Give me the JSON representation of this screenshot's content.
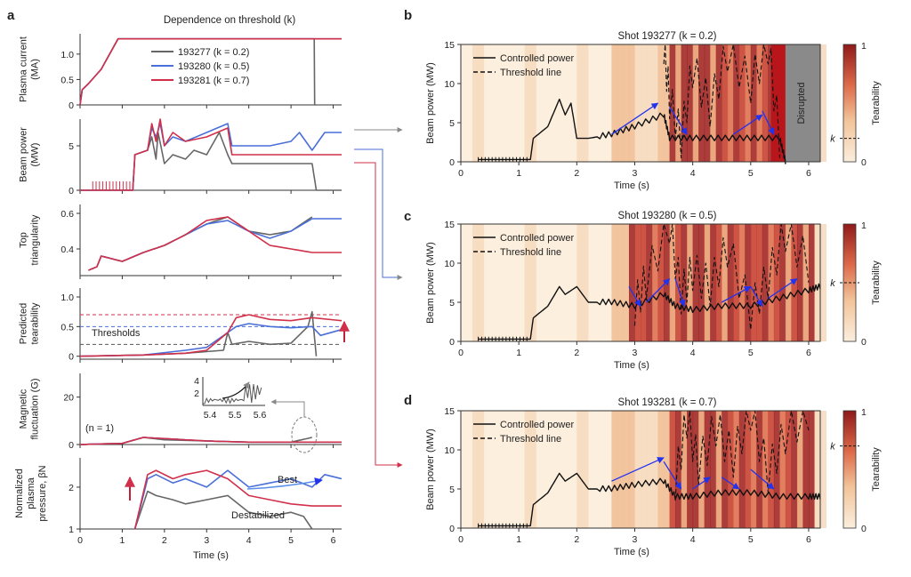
{
  "panels": {
    "a": "a",
    "b": "b",
    "c": "c",
    "d": "d"
  },
  "colors": {
    "gray": "#666666",
    "blue": "#4a6fd8",
    "red": "#d0304a",
    "black": "#111111",
    "arrow_blue": "#2233ee",
    "disrupted": "#8a8a8a",
    "connector": "#d0304a"
  },
  "panel_a": {
    "title": "Dependence on threshold (k)",
    "xlabel": "Time (s)",
    "xticks": [
      "0",
      "1",
      "2",
      "3",
      "4",
      "5",
      "6"
    ],
    "legend": [
      "193277 (k = 0.2)",
      "193280 (k = 0.5)",
      "193281 (k = 0.7)"
    ],
    "annotations": {
      "thresholds": "Thresholds",
      "n1": "(n = 1)",
      "best": "Best",
      "destabilized": "Destabilized"
    },
    "inset_yticks": [
      "2",
      "4"
    ],
    "inset_xticks": [
      "5.4",
      "5.5",
      "5.6"
    ],
    "subplots": [
      {
        "ylabel": [
          "Plasma current",
          "(MA)"
        ],
        "yticks": [
          "0",
          "0.5",
          "1.0"
        ]
      },
      {
        "ylabel": [
          "Beam power",
          "(MW)"
        ],
        "yticks": [
          "0",
          "5"
        ]
      },
      {
        "ylabel": [
          "Top",
          "triangularity"
        ],
        "yticks": [
          "0.4",
          "0.6"
        ]
      },
      {
        "ylabel": [
          "Predicted",
          "tearability"
        ],
        "yticks": [
          "0",
          "0.5",
          "1.0"
        ]
      },
      {
        "ylabel": [
          "Magnetic",
          "fluctuation (G)"
        ],
        "yticks": [
          "0",
          "20"
        ]
      },
      {
        "ylabel": [
          "Normalized",
          "plasma",
          "pressure, βN"
        ],
        "yticks": [
          "1",
          "2"
        ]
      }
    ]
  },
  "right_panels": {
    "ylabel": "Beam power (MW)",
    "xlabel": "Time (s)",
    "xticks": [
      "0",
      "1",
      "2",
      "3",
      "4",
      "5",
      "6"
    ],
    "yticks": [
      "0",
      "5",
      "10",
      "15"
    ],
    "legend_solid": "Controlled power",
    "legend_dashed": "Threshold line",
    "colorbar_label": "Tearability",
    "colorbar_ticks": [
      "0",
      "1"
    ],
    "k_label": "k",
    "disrupted": "Disrupted",
    "titles": [
      "Shot 193277 (k = 0.2)",
      "Shot 193280 (k = 0.5)",
      "Shot 193281 (k = 0.7)"
    ]
  },
  "chart_data": [
    {
      "type": "line",
      "title": "Plasma current (MA)",
      "xlabel": "Time (s)",
      "ylabel": "Plasma current (MA)",
      "xlim": [
        0,
        6.2
      ],
      "ylim": [
        0,
        1.4
      ],
      "series": [
        {
          "name": "193277 (k = 0.2)",
          "x": [
            0,
            0.05,
            0.2,
            0.5,
            0.9,
            0.95,
            5.55,
            5.56,
            5.6
          ],
          "y": [
            0,
            0.3,
            0.42,
            0.7,
            1.3,
            1.3,
            1.3,
            0,
            0
          ]
        },
        {
          "name": "193280 (k = 0.5)",
          "x": [
            0,
            0.05,
            0.2,
            0.5,
            0.9,
            0.95,
            6.2
          ],
          "y": [
            0,
            0.3,
            0.42,
            0.7,
            1.3,
            1.3,
            1.3
          ]
        },
        {
          "name": "193281 (k = 0.7)",
          "x": [
            0,
            0.05,
            0.2,
            0.5,
            0.9,
            0.95,
            6.2
          ],
          "y": [
            0,
            0.3,
            0.42,
            0.7,
            1.3,
            1.3,
            1.3
          ]
        }
      ]
    },
    {
      "type": "line",
      "title": "Beam power (MW)",
      "xlabel": "Time (s)",
      "ylabel": "Beam power (MW)",
      "xlim": [
        0,
        6.2
      ],
      "ylim": [
        0,
        8
      ],
      "series": [
        {
          "name": "193277 (k = 0.2)",
          "x": [
            0,
            0.3,
            1.0,
            1.25,
            1.3,
            1.6,
            1.7,
            1.8,
            1.85,
            2.0,
            2.2,
            2.5,
            2.7,
            3.0,
            3.3,
            3.5,
            3.6,
            4.0,
            4.5,
            5.0,
            5.5,
            5.6,
            6.2
          ],
          "y": [
            0,
            0,
            0,
            0,
            4,
            4.5,
            6,
            3.5,
            6.5,
            3,
            4,
            3.5,
            4.5,
            4,
            6.5,
            4,
            3,
            3,
            3,
            3,
            3,
            0,
            0
          ]
        },
        {
          "name": "193280 (k = 0.5)",
          "x": [
            0,
            1.25,
            1.3,
            1.6,
            1.7,
            1.8,
            1.9,
            2.0,
            2.2,
            2.5,
            3.0,
            3.5,
            3.6,
            4.0,
            4.5,
            5.0,
            5.2,
            5.5,
            5.8,
            6.2
          ],
          "y": [
            0,
            0,
            4,
            4.5,
            7,
            6,
            7.5,
            5,
            6,
            5.5,
            6.5,
            7.5,
            5,
            5,
            5,
            5.5,
            6.5,
            4.5,
            6.5,
            6.5
          ]
        },
        {
          "name": "193281 (k = 0.7)",
          "x": [
            0,
            1.25,
            1.3,
            1.6,
            1.7,
            1.8,
            1.9,
            2.0,
            2.2,
            2.5,
            3.0,
            3.5,
            3.6,
            4.0,
            4.5,
            5.0,
            5.5,
            6.2
          ],
          "y": [
            0,
            0,
            4,
            4.5,
            7.5,
            5.5,
            8,
            5,
            6.5,
            5.5,
            6,
            7,
            4,
            4,
            4,
            4,
            4,
            4
          ]
        }
      ]
    },
    {
      "type": "line",
      "title": "Top triangularity",
      "xlabel": "Time (s)",
      "ylabel": "Top triangularity",
      "xlim": [
        0,
        6.2
      ],
      "ylim": [
        0.25,
        0.65
      ],
      "series": [
        {
          "name": "193277 (k = 0.2)",
          "x": [
            0.2,
            0.4,
            0.5,
            1.0,
            1.5,
            2.0,
            2.5,
            3.0,
            3.5,
            4.0,
            4.5,
            5.0,
            5.5
          ],
          "y": [
            0.28,
            0.3,
            0.36,
            0.33,
            0.38,
            0.42,
            0.48,
            0.54,
            0.58,
            0.5,
            0.48,
            0.5,
            0.58
          ]
        },
        {
          "name": "193280 (k = 0.5)",
          "x": [
            0.2,
            0.4,
            0.5,
            1.0,
            1.5,
            2.0,
            2.5,
            3.0,
            3.5,
            4.0,
            4.5,
            5.0,
            5.5,
            6.2
          ],
          "y": [
            0.28,
            0.3,
            0.36,
            0.33,
            0.38,
            0.42,
            0.48,
            0.54,
            0.56,
            0.5,
            0.46,
            0.5,
            0.57,
            0.57
          ]
        },
        {
          "name": "193281 (k = 0.7)",
          "x": [
            0.2,
            0.4,
            0.5,
            1.0,
            1.5,
            2.0,
            2.5,
            3.0,
            3.5,
            4.0,
            4.5,
            5.0,
            5.5,
            6.2
          ],
          "y": [
            0.28,
            0.3,
            0.36,
            0.33,
            0.38,
            0.42,
            0.48,
            0.56,
            0.58,
            0.5,
            0.42,
            0.4,
            0.38,
            0.38
          ]
        }
      ]
    },
    {
      "type": "line",
      "title": "Predicted tearability",
      "xlabel": "Time (s)",
      "ylabel": "Predicted tearability",
      "xlim": [
        0,
        6.2
      ],
      "ylim": [
        -0.05,
        1.15
      ],
      "series": [
        {
          "name": "193277 (k = 0.2)",
          "x": [
            0,
            1.5,
            2.5,
            3.4,
            3.5,
            3.6,
            4.0,
            4.5,
            5.0,
            5.4,
            5.5,
            5.6
          ],
          "y": [
            0,
            0.02,
            0.05,
            0.1,
            0.4,
            0.2,
            0.25,
            0.2,
            0.22,
            0.5,
            0.75,
            0
          ]
        },
        {
          "name": "193280 (k = 0.5)",
          "x": [
            0,
            1.5,
            2.5,
            3.0,
            3.5,
            3.7,
            4.0,
            4.5,
            5.0,
            5.5,
            5.7,
            6.2
          ],
          "y": [
            0,
            0.02,
            0.1,
            0.15,
            0.4,
            0.5,
            0.55,
            0.5,
            0.48,
            0.5,
            0.35,
            0.45
          ]
        },
        {
          "name": "193281 (k = 0.7)",
          "x": [
            0,
            1.5,
            2.5,
            3.0,
            3.5,
            3.7,
            4.0,
            4.5,
            5.0,
            5.5,
            6.2
          ],
          "y": [
            0,
            0.02,
            0.05,
            0.1,
            0.4,
            0.65,
            0.7,
            0.62,
            0.6,
            0.65,
            0.6
          ]
        }
      ]
    },
    {
      "type": "line",
      "title": "Magnetic fluctuation (G)",
      "xlabel": "Time (s)",
      "ylabel": "Magnetic fluctuation (G)",
      "xlim": [
        0,
        6.2
      ],
      "ylim": [
        0,
        30
      ],
      "series": [
        {
          "name": "193277 (k = 0.2)",
          "x": [
            0,
            1.0,
            1.5,
            2.0,
            3.0,
            4.0,
            5.0,
            5.5
          ],
          "y": [
            0,
            0.5,
            3,
            2,
            1.5,
            1,
            1,
            3
          ]
        },
        {
          "name": "193280 (k = 0.5)",
          "x": [
            0,
            1.0,
            1.5,
            2.0,
            3.0,
            4.0,
            5.0,
            6.2
          ],
          "y": [
            0,
            0.5,
            3,
            2.5,
            1.5,
            1,
            1,
            1
          ]
        },
        {
          "name": "193281 (k = 0.7)",
          "x": [
            0,
            1.0,
            1.5,
            2.0,
            3.0,
            4.0,
            5.0,
            6.2
          ],
          "y": [
            0,
            0.5,
            3,
            2.5,
            1.5,
            1,
            1,
            1
          ]
        }
      ]
    },
    {
      "type": "line",
      "title": "Normalized plasma pressure",
      "xlabel": "Time (s)",
      "ylabel": "βN",
      "xlim": [
        0,
        6.2
      ],
      "ylim": [
        1,
        2.7
      ],
      "series": [
        {
          "name": "193277 (k = 0.2)",
          "x": [
            1.3,
            1.6,
            1.8,
            2.2,
            2.5,
            3.0,
            3.5,
            4.0,
            4.5,
            5.0,
            5.3,
            5.5
          ],
          "y": [
            1.0,
            1.9,
            1.8,
            1.7,
            1.6,
            1.7,
            1.8,
            1.4,
            1.3,
            1.4,
            1.3,
            1.0
          ]
        },
        {
          "name": "193280 (k = 0.5)",
          "x": [
            1.3,
            1.6,
            1.8,
            2.2,
            2.5,
            3.0,
            3.5,
            4.0,
            4.5,
            5.0,
            5.5,
            5.8,
            6.2
          ],
          "y": [
            1.0,
            2.2,
            2.3,
            2.1,
            2.2,
            2.0,
            2.4,
            2.0,
            2.1,
            2.2,
            2.0,
            2.3,
            2.2
          ]
        },
        {
          "name": "193281 (k = 0.7)",
          "x": [
            1.3,
            1.6,
            1.8,
            2.2,
            2.5,
            3.0,
            3.5,
            4.0,
            4.5,
            5.0,
            5.5,
            6.2
          ],
          "y": [
            1.0,
            2.3,
            2.4,
            2.2,
            2.3,
            2.4,
            2.2,
            1.8,
            1.7,
            1.6,
            1.55,
            1.55
          ]
        }
      ]
    },
    {
      "type": "heatmap",
      "title": "Shot 193277 (k = 0.2)",
      "xlabel": "Time (s)",
      "ylabel": "Beam power (MW)",
      "xlim": [
        0,
        6.2
      ],
      "ylim": [
        0,
        15
      ],
      "disrupted_from": 5.6,
      "series": [
        {
          "name": "Controlled power",
          "x": [
            0.3,
            1.2,
            1.25,
            1.5,
            1.7,
            1.8,
            1.9,
            2.0,
            2.2,
            2.6,
            3.0,
            3.5,
            3.6,
            4.0,
            4.5,
            5.0,
            5.5,
            5.6
          ],
          "y": [
            0.3,
            0.3,
            3,
            4.5,
            8,
            6,
            7.5,
            3,
            3,
            3.5,
            4.5,
            6,
            3,
            3,
            3,
            3,
            3,
            0
          ]
        },
        {
          "name": "Threshold line",
          "x": [
            3.5,
            3.6,
            3.8,
            4.0,
            4.3,
            4.6,
            5.0,
            5.3,
            5.5
          ],
          "y": [
            15,
            8,
            3,
            12,
            7,
            14,
            10,
            15,
            3
          ]
        }
      ]
    },
    {
      "type": "heatmap",
      "title": "Shot 193280 (k = 0.5)",
      "xlabel": "Time (s)",
      "ylabel": "Beam power (MW)",
      "xlim": [
        0,
        6.2
      ],
      "ylim": [
        0,
        15
      ],
      "series": [
        {
          "name": "Controlled power",
          "x": [
            0.3,
            1.2,
            1.25,
            1.5,
            1.7,
            1.8,
            2.0,
            2.2,
            2.6,
            3.0,
            3.5,
            3.7,
            4.0,
            4.5,
            5.0,
            5.5,
            6.0,
            6.2
          ],
          "y": [
            0.3,
            0.3,
            3,
            4.5,
            7,
            6,
            7,
            5,
            5,
            4.5,
            6,
            4.5,
            4,
            4.5,
            4.5,
            5.5,
            6.5,
            7
          ]
        },
        {
          "name": "Threshold line",
          "x": [
            3.0,
            3.2,
            3.6,
            3.8,
            4.0,
            4.3,
            4.6,
            5.0,
            5.3,
            5.6,
            6.0
          ],
          "y": [
            4.5,
            8,
            15,
            6,
            9,
            7,
            12,
            4,
            8,
            14,
            10
          ]
        }
      ]
    },
    {
      "type": "heatmap",
      "title": "Shot 193281 (k = 0.7)",
      "xlabel": "Time (s)",
      "ylabel": "Beam power (MW)",
      "xlim": [
        0,
        6.2
      ],
      "ylim": [
        0,
        15
      ],
      "series": [
        {
          "name": "Controlled power",
          "x": [
            0.3,
            1.2,
            1.25,
            1.5,
            1.7,
            1.8,
            2.0,
            2.2,
            2.6,
            3.0,
            3.5,
            3.7,
            4.0,
            4.5,
            5.0,
            5.5,
            6.0,
            6.2
          ],
          "y": [
            0.3,
            0.3,
            3,
            4.5,
            7,
            6,
            7,
            5,
            5,
            5.5,
            6,
            4,
            4,
            4.5,
            4.5,
            4,
            4,
            4
          ]
        },
        {
          "name": "Threshold line",
          "x": [
            3.7,
            3.9,
            4.1,
            4.4,
            4.7,
            5.0,
            5.3,
            5.6,
            6.0
          ],
          "y": [
            6,
            14,
            8,
            13,
            9,
            15,
            7,
            12,
            15
          ]
        }
      ]
    }
  ]
}
